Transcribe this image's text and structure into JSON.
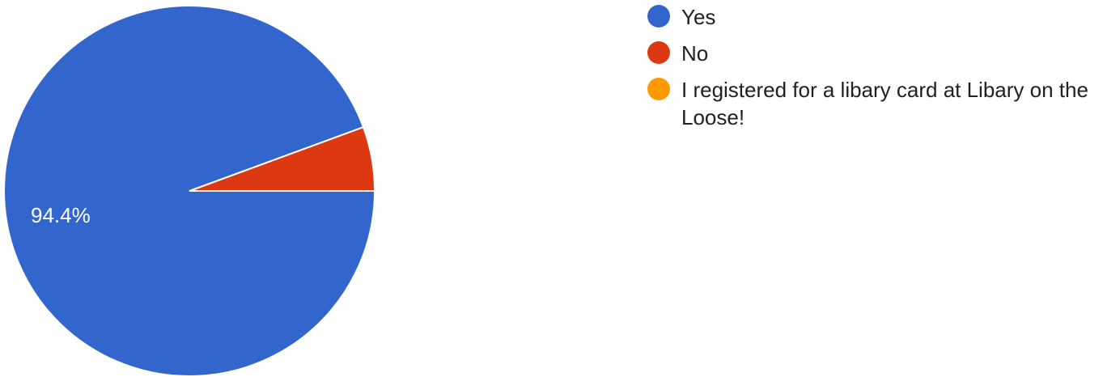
{
  "chart_data": {
    "type": "pie",
    "title": "",
    "slices": [
      {
        "label": "Yes",
        "value": 94.4,
        "color": "#3366cc",
        "data_label": "94.4%"
      },
      {
        "label": "No",
        "value": 5.6,
        "color": "#dc3912",
        "data_label": ""
      },
      {
        "label": "I registered for a libary card at Libary on the Loose!",
        "value": 0,
        "color": "#ff9900",
        "data_label": ""
      }
    ],
    "legend_position": "right"
  }
}
